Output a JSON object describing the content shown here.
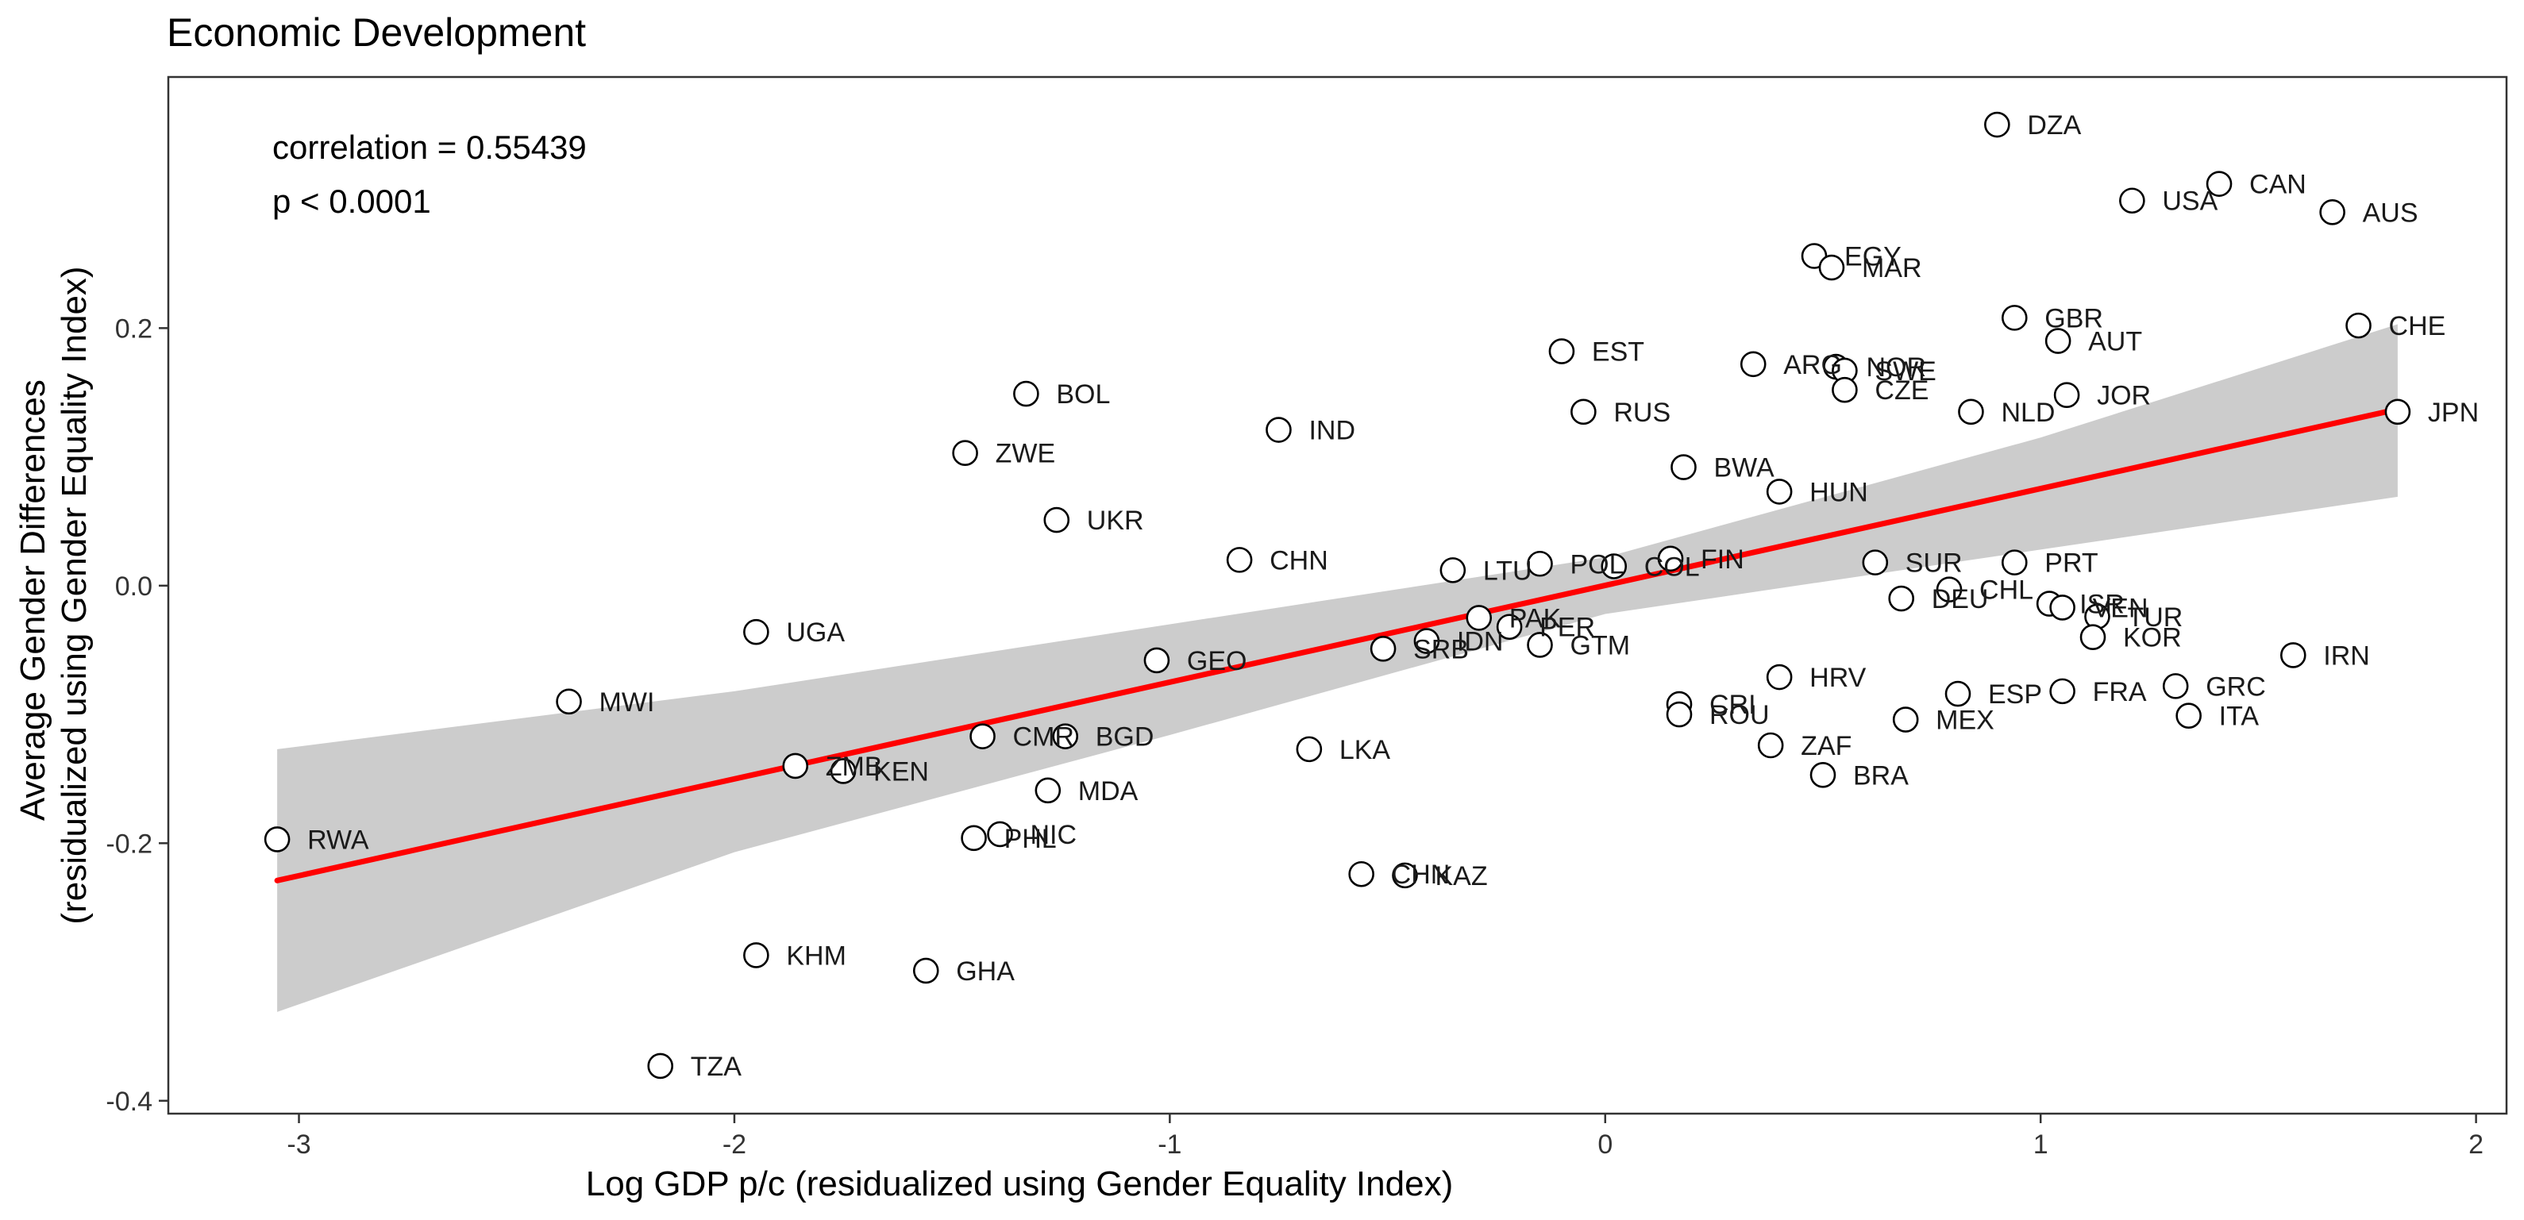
{
  "chart_data": {
    "type": "scatter",
    "title": "Economic Development",
    "xlabel": "Log GDP p/c (residualized using Gender Equality Index)",
    "ylabel": "Average Gender Differences\n(residualized using Gender Equality Index)",
    "xlim": [
      -3.3,
      2.07
    ],
    "ylim": [
      -0.41,
      0.395
    ],
    "x_ticks": [
      -3,
      -2,
      -1,
      0,
      1,
      2
    ],
    "x_tick_labels": [
      "-3",
      "-2",
      "-1",
      "0",
      "1",
      "2"
    ],
    "y_ticks": [
      -0.4,
      -0.2,
      0.0,
      0.2
    ],
    "y_tick_labels": [
      "-0.4",
      "-0.2",
      "0.0",
      "0.2"
    ],
    "grid": false,
    "annotations": [
      "correlation = 0.55439",
      "p < 0.0001"
    ],
    "colors": {
      "fit_line": "#ff0000",
      "confidence_band": "#cccccc",
      "marker_stroke": "#000000",
      "marker_fill": "#ffffff"
    },
    "fit_line": {
      "x": [
        -3.05,
        1.82
      ],
      "y": [
        -0.229,
        0.137
      ]
    },
    "confidence_band": {
      "x": [
        -3.05,
        -2.0,
        -1.0,
        0.0,
        1.0,
        1.82
      ],
      "upper": [
        -0.127,
        -0.082,
        -0.03,
        0.022,
        0.115,
        0.203
      ],
      "lower": [
        -0.331,
        -0.207,
        -0.116,
        -0.022,
        0.028,
        0.069
      ]
    },
    "points": [
      {
        "x": 0.9,
        "y": 0.358,
        "label": "DZA"
      },
      {
        "x": 1.41,
        "y": 0.312,
        "label": "CAN"
      },
      {
        "x": 1.21,
        "y": 0.299,
        "label": "USA"
      },
      {
        "x": 1.67,
        "y": 0.29,
        "label": "AUS"
      },
      {
        "x": 0.48,
        "y": 0.256,
        "label": "EGY"
      },
      {
        "x": 0.52,
        "y": 0.247,
        "label": "MAR"
      },
      {
        "x": 0.94,
        "y": 0.208,
        "label": "GBR"
      },
      {
        "x": 1.73,
        "y": 0.202,
        "label": "CHE"
      },
      {
        "x": 1.04,
        "y": 0.19,
        "label": "AUT"
      },
      {
        "x": -0.1,
        "y": 0.182,
        "label": "EST"
      },
      {
        "x": 0.34,
        "y": 0.172,
        "label": "ARG"
      },
      {
        "x": 0.53,
        "y": 0.17,
        "label": "NOR"
      },
      {
        "x": 0.55,
        "y": 0.167,
        "label": "SWE"
      },
      {
        "x": 0.55,
        "y": 0.152,
        "label": "CZE"
      },
      {
        "x": -1.33,
        "y": 0.149,
        "label": "BOL"
      },
      {
        "x": 1.06,
        "y": 0.148,
        "label": "JOR"
      },
      {
        "x": -0.05,
        "y": 0.135,
        "label": "RUS"
      },
      {
        "x": 0.84,
        "y": 0.135,
        "label": "NLD"
      },
      {
        "x": 1.82,
        "y": 0.135,
        "label": "JPN"
      },
      {
        "x": -0.75,
        "y": 0.121,
        "label": "IND"
      },
      {
        "x": -1.47,
        "y": 0.103,
        "label": "ZWE"
      },
      {
        "x": 0.18,
        "y": 0.092,
        "label": "BWA"
      },
      {
        "x": 0.4,
        "y": 0.073,
        "label": "HUN"
      },
      {
        "x": -1.26,
        "y": 0.051,
        "label": "UKR"
      },
      {
        "x": -0.84,
        "y": 0.02,
        "label": "CHN"
      },
      {
        "x": 0.15,
        "y": 0.021,
        "label": "FIN"
      },
      {
        "x": -0.15,
        "y": 0.017,
        "label": "POL"
      },
      {
        "x": 0.02,
        "y": 0.015,
        "label": "COL"
      },
      {
        "x": 0.62,
        "y": 0.018,
        "label": "SUR"
      },
      {
        "x": 0.94,
        "y": 0.018,
        "label": "PRT"
      },
      {
        "x": -0.35,
        "y": 0.012,
        "label": "LTU"
      },
      {
        "x": 0.79,
        "y": -0.003,
        "label": "CHL"
      },
      {
        "x": 0.68,
        "y": -0.01,
        "label": "DEU"
      },
      {
        "x": 1.02,
        "y": -0.014,
        "label": "ISR"
      },
      {
        "x": 1.05,
        "y": -0.017,
        "label": "VEN"
      },
      {
        "x": 1.13,
        "y": -0.024,
        "label": "TUR"
      },
      {
        "x": 1.12,
        "y": -0.04,
        "label": "KOR"
      },
      {
        "x": -0.29,
        "y": -0.025,
        "label": "PAK"
      },
      {
        "x": -0.22,
        "y": -0.032,
        "label": "PER"
      },
      {
        "x": -1.95,
        "y": -0.036,
        "label": "UGA"
      },
      {
        "x": -0.41,
        "y": -0.043,
        "label": "IDN"
      },
      {
        "x": -0.15,
        "y": -0.046,
        "label": "GTM"
      },
      {
        "x": -0.51,
        "y": -0.049,
        "label": "SRB"
      },
      {
        "x": 1.58,
        "y": -0.054,
        "label": "IRN"
      },
      {
        "x": -1.03,
        "y": -0.058,
        "label": "GEO"
      },
      {
        "x": 0.4,
        "y": -0.071,
        "label": "HRV"
      },
      {
        "x": 1.31,
        "y": -0.078,
        "label": "GRC"
      },
      {
        "x": 1.05,
        "y": -0.082,
        "label": "FRA"
      },
      {
        "x": 0.81,
        "y": -0.084,
        "label": "ESP"
      },
      {
        "x": -2.38,
        "y": -0.09,
        "label": "MWI"
      },
      {
        "x": 0.17,
        "y": -0.092,
        "label": "CRI"
      },
      {
        "x": 0.17,
        "y": -0.1,
        "label": "ROU"
      },
      {
        "x": 1.34,
        "y": -0.101,
        "label": "ITA"
      },
      {
        "x": 0.69,
        "y": -0.104,
        "label": "MEX"
      },
      {
        "x": -1.43,
        "y": -0.117,
        "label": "CMR"
      },
      {
        "x": -1.24,
        "y": -0.117,
        "label": "BGD"
      },
      {
        "x": 0.38,
        "y": -0.124,
        "label": "ZAF"
      },
      {
        "x": -0.68,
        "y": -0.127,
        "label": "LKA"
      },
      {
        "x": -1.86,
        "y": -0.14,
        "label": "ZMB"
      },
      {
        "x": -1.75,
        "y": -0.144,
        "label": "KEN"
      },
      {
        "x": 0.5,
        "y": -0.147,
        "label": "BRA"
      },
      {
        "x": -1.28,
        "y": -0.159,
        "label": "MDA"
      },
      {
        "x": -3.05,
        "y": -0.197,
        "label": "RWA"
      },
      {
        "x": -1.45,
        "y": -0.196,
        "label": "PHL"
      },
      {
        "x": -1.39,
        "y": -0.193,
        "label": "NIC"
      },
      {
        "x": -0.56,
        "y": -0.224,
        "label": "CHN"
      },
      {
        "x": -0.46,
        "y": -0.225,
        "label": "KAZ"
      },
      {
        "x": -1.95,
        "y": -0.287,
        "label": "KHM"
      },
      {
        "x": -1.56,
        "y": -0.299,
        "label": "GHA"
      },
      {
        "x": -2.17,
        "y": -0.373,
        "label": "TZA"
      }
    ]
  }
}
